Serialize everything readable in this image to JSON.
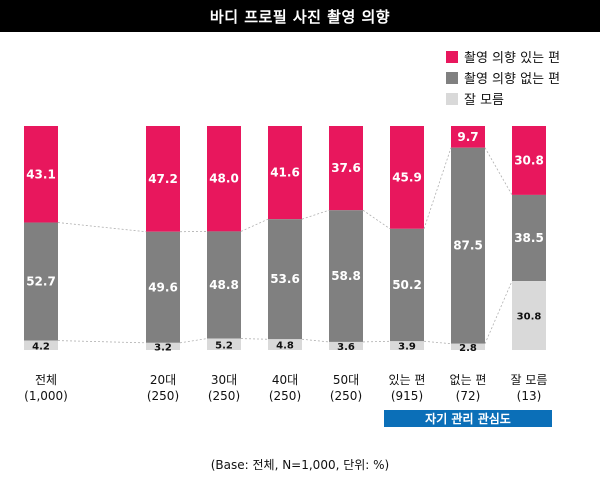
{
  "title": "바디 프로필 사진 촬영 의향",
  "legend": [
    {
      "label": "촬영 의향 있는 편",
      "color": "#e8175d"
    },
    {
      "label": "촬영 의향 없는 편",
      "color": "#808080"
    },
    {
      "label": "잘 모름",
      "color": "#d9d9d9"
    }
  ],
  "categories": [
    {
      "name": "전체",
      "n": "(1,000)"
    },
    {
      "name": "20대",
      "n": "(250)"
    },
    {
      "name": "30대",
      "n": "(250)"
    },
    {
      "name": "40대",
      "n": "(250)"
    },
    {
      "name": "50대",
      "n": "(250)"
    },
    {
      "name": "있는 편",
      "n": "(915)"
    },
    {
      "name": "없는 편",
      "n": "(72)"
    },
    {
      "name": "잘 모름",
      "n": "(13)"
    }
  ],
  "group_label": "자기 관리 관심도",
  "footnote": "(Base: 전체, N=1,000, 단위: %)",
  "chart_data": {
    "type": "bar",
    "stacked": true,
    "percent": true,
    "categories": [
      "전체",
      "20대",
      "30대",
      "40대",
      "50대",
      "있는 편",
      "없는 편",
      "잘 모름"
    ],
    "series": [
      {
        "name": "촬영 의향 있는 편",
        "color": "#e8175d",
        "values": [
          43.1,
          47.2,
          48.0,
          41.6,
          37.6,
          45.9,
          9.7,
          30.8
        ]
      },
      {
        "name": "촬영 의향 없는 편",
        "color": "#808080",
        "values": [
          52.7,
          49.6,
          48.8,
          53.6,
          58.8,
          50.2,
          87.5,
          38.5
        ]
      },
      {
        "name": "잘 모름",
        "color": "#d9d9d9",
        "values": [
          4.2,
          3.2,
          5.2,
          4.8,
          3.6,
          3.9,
          2.8,
          30.8
        ]
      }
    ],
    "ylim": [
      0,
      100
    ]
  }
}
